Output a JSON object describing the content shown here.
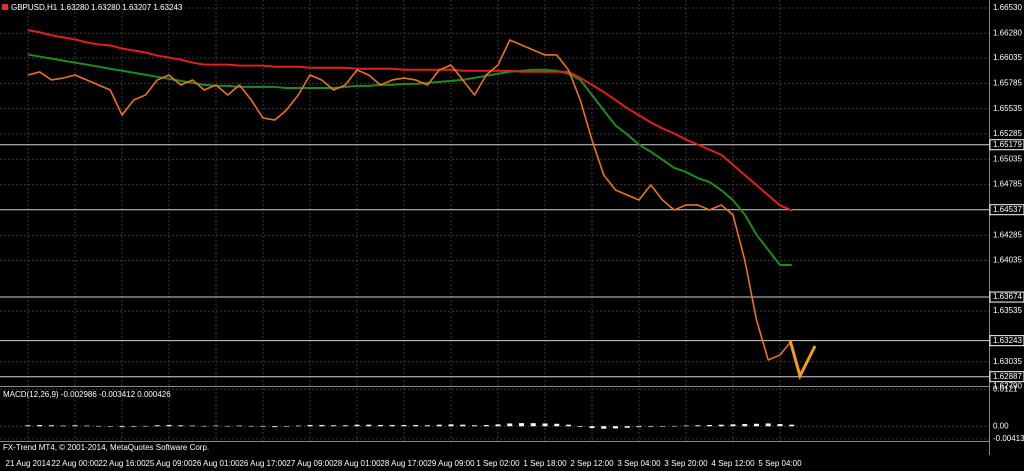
{
  "header": {
    "symbol": "GBPUSD,H1",
    "ohlc": "1.63280 1.63280 1.63207 1.63243"
  },
  "footer": "FX-Trend MT4, © 2001-2014, MetaQuotes Software Corp.",
  "chart_data": [
    {
      "type": "line",
      "categories": [
        "21 Aug 2014",
        null,
        null,
        null,
        "22 Aug 00:00",
        null,
        null,
        null,
        "22 Aug 16:00",
        null,
        null,
        null,
        "25 Aug 09:00",
        null,
        null,
        null,
        "26 Aug 01:00",
        null,
        null,
        null,
        "26 Aug 17:00",
        null,
        null,
        null,
        "27 Aug 09:00",
        null,
        null,
        null,
        "28 Aug 01:00",
        null,
        null,
        null,
        "28 Aug 17:00",
        null,
        null,
        null,
        "29 Aug 09:00",
        null,
        null,
        null,
        "1 Sep 02:00",
        null,
        null,
        null,
        "1 Sep 18:00",
        null,
        null,
        null,
        "2 Sep 12:00",
        null,
        null,
        null,
        "3 Sep 04:00",
        null,
        null,
        null,
        "3 Sep 20:00",
        null,
        null,
        null,
        "4 Sep 12:00",
        null,
        null,
        null,
        "5 Sep 04:00",
        null
      ],
      "series": [
        {
          "color": "#e8731f",
          "values": [
            1.65868,
            1.65898,
            1.65819,
            1.65838,
            1.65868,
            1.65819,
            1.65769,
            1.6572,
            1.65473,
            1.65621,
            1.6567,
            1.65819,
            1.65868,
            1.65769,
            1.65819,
            1.6572,
            1.65769,
            1.6567,
            1.65769,
            1.65621,
            1.65443,
            1.65423,
            1.65522,
            1.6567,
            1.65868,
            1.65819,
            1.6572,
            1.65769,
            1.65917,
            1.65868,
            1.65769,
            1.65819,
            1.65838,
            1.65819,
            1.65769,
            1.65917,
            1.65967,
            1.65819,
            1.6567,
            1.65868,
            1.65967,
            1.66214,
            1.66164,
            1.66115,
            1.66066,
            1.66066,
            1.65917,
            1.65621,
            1.65226,
            1.6488,
            1.64732,
            1.64682,
            1.64633,
            1.64781,
            1.64633,
            1.64534,
            1.64584,
            1.64584,
            1.64534,
            1.64584,
            1.64485,
            1.6404,
            1.63447,
            1.63052,
            1.63102,
            1.63243
          ]
        },
        {
          "color": "#e0201c",
          "values": [
            1.6631,
            1.6629,
            1.6626,
            1.6624,
            1.6622,
            1.6619,
            1.6617,
            1.6616,
            1.6613,
            1.6611,
            1.6609,
            1.6606,
            1.6604,
            1.6602,
            1.6599,
            1.6597,
            1.6597,
            1.6597,
            1.6596,
            1.6596,
            1.6596,
            1.6595,
            1.6595,
            1.6595,
            1.6594,
            1.6594,
            1.6594,
            1.6594,
            1.6593,
            1.6593,
            1.6593,
            1.6593,
            1.6592,
            1.6592,
            1.6592,
            1.6592,
            1.6592,
            1.6591,
            1.6591,
            1.6591,
            1.6591,
            1.6591,
            1.659,
            1.659,
            1.659,
            1.659,
            1.659,
            1.6584,
            1.6577,
            1.657,
            1.6562,
            1.6554,
            1.6547,
            1.654,
            1.6534,
            1.6529,
            1.6523,
            1.6518,
            1.6513,
            1.6508,
            1.6498,
            1.6488,
            1.6478,
            1.6468,
            1.6458,
            1.6453
          ]
        },
        {
          "color": "#1f8a1f",
          "values": [
            1.6607,
            1.6605,
            1.6603,
            1.6601,
            1.6599,
            1.6597,
            1.6595,
            1.6593,
            1.6591,
            1.6589,
            1.6587,
            1.6585,
            1.6583,
            1.6581,
            1.6579,
            1.6577,
            1.6576,
            1.6576,
            1.6575,
            1.6575,
            1.6575,
            1.6575,
            1.6574,
            1.6574,
            1.6574,
            1.6574,
            1.6574,
            1.6575,
            1.6576,
            1.6576,
            1.6577,
            1.6577,
            1.6578,
            1.6578,
            1.6579,
            1.658,
            1.6581,
            1.6582,
            1.6584,
            1.6586,
            1.6588,
            1.659,
            1.6591,
            1.6592,
            1.6592,
            1.6591,
            1.6588,
            1.6582,
            1.6567,
            1.6552,
            1.6537,
            1.6528,
            1.6518,
            1.6511,
            1.6503,
            1.6495,
            1.6491,
            1.6485,
            1.6481,
            1.6473,
            1.6463,
            1.6449,
            1.6429,
            1.6414,
            1.6399,
            1.6399
          ]
        }
      ],
      "ylim": [
        1.62795,
        1.66609
      ],
      "yticks": [
        {
          "value": 1.6653,
          "label": "1.66530"
        },
        {
          "value": 1.6628,
          "label": "1.66280"
        },
        1.66035,
        1.65785,
        1.65535,
        1.65285,
        1.65035,
        1.64785,
        1.64285,
        1.64035,
        1.63535,
        1.63035,
        {
          "value": 1.6279,
          "label": "1.62790"
        }
      ],
      "levels": [
        1.65179,
        1.64537,
        1.63674,
        1.63243,
        1.62887
      ],
      "grid": true
    },
    {
      "type": "bar",
      "title": "MACD(12,26,9) -0.002986 -0.003412 0.000426",
      "color": "#ffffff",
      "values": [
        0.0003,
        0.0004,
        0.0003,
        0.0002,
        0.0003,
        0.0002,
        0.0001,
        -0.0001,
        -0.0003,
        -0.0002,
        0.0001,
        0.0003,
        0.0004,
        0.0003,
        0.0002,
        0.0001,
        0.0002,
        0.0001,
        0.0002,
        0.0001,
        -0.0002,
        -0.0003,
        -0.0001,
        0.0002,
        0.0004,
        0.0004,
        0.0003,
        0.0003,
        0.0005,
        0.0005,
        0.0004,
        0.0004,
        0.0004,
        0.0004,
        0.0003,
        0.0005,
        0.0006,
        0.0005,
        0.0003,
        0.0004,
        0.0006,
        0.0009,
        0.001,
        0.001,
        0.0009,
        0.0008,
        0.0005,
        -0.0002,
        -0.0006,
        -0.0008,
        -0.0007,
        -0.0005,
        -0.0003,
        -0.0002,
        -0.0001,
        0.0001,
        0.0002,
        0.0003,
        0.0004,
        0.0005,
        0.0006,
        0.0007,
        0.0008,
        0.0009,
        0.0007,
        0.0005
      ],
      "ylim": [
        -0.0045,
        0.0125
      ],
      "yticks": [
        0.0121,
        {
          "value": 0,
          "label": "0.00"
        },
        -0.004133
      ]
    }
  ]
}
